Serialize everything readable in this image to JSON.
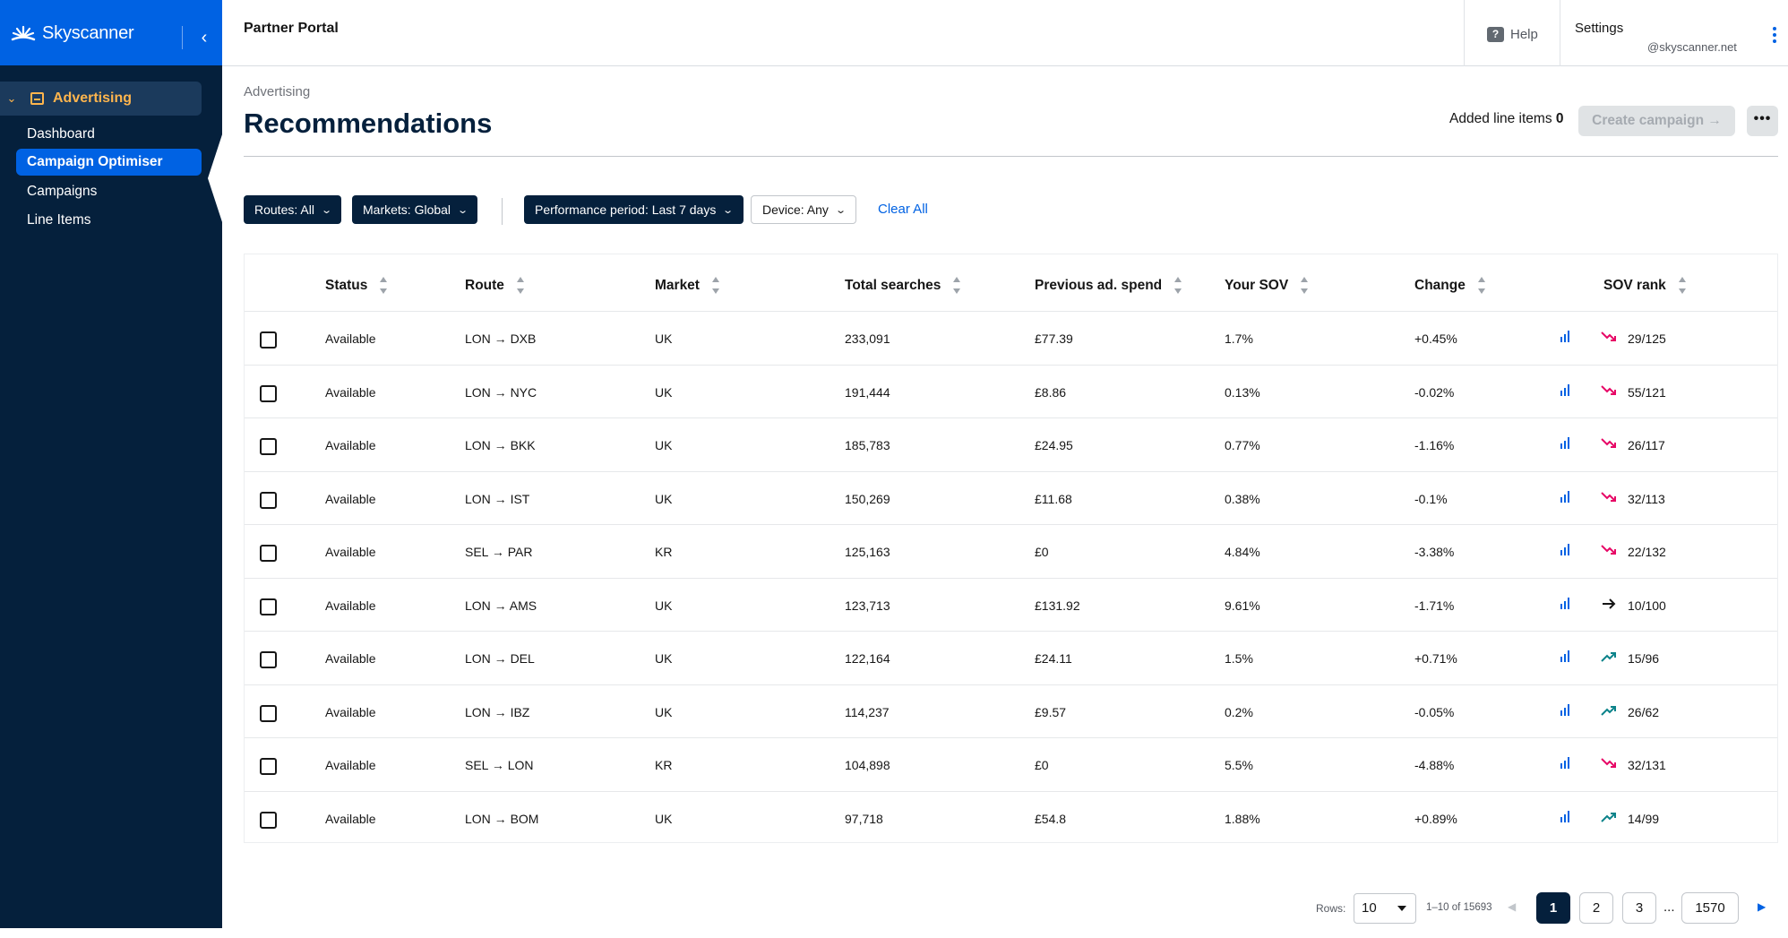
{
  "brand": {
    "name": "Skyscanner"
  },
  "sidebar": {
    "section": "Advertising",
    "items": [
      {
        "label": "Dashboard",
        "active": false
      },
      {
        "label": "Campaign Optimiser",
        "active": true
      },
      {
        "label": "Campaigns",
        "active": false
      },
      {
        "label": "Line Items",
        "active": false
      }
    ]
  },
  "topbar": {
    "title": "Partner Portal",
    "help_label": "Help",
    "settings_label": "Settings",
    "email": "@skyscanner.net"
  },
  "page": {
    "breadcrumb": "Advertising",
    "title": "Recommendations",
    "added_label": "Added line items",
    "added_count": "0",
    "create_label": "Create campaign →",
    "more_label": "•••"
  },
  "filters": {
    "routes": "Routes: All",
    "markets": "Markets: Global",
    "period": "Performance period: Last 7 days",
    "device": "Device: Any",
    "clear": "Clear All"
  },
  "table": {
    "columns": [
      "Status",
      "Route",
      "Market",
      "Total searches",
      "Previous ad. spend",
      "Your SOV",
      "Change",
      "SOV rank"
    ],
    "rows": [
      {
        "status": "Available",
        "route": "LON → DXB",
        "market": "UK",
        "searches": "233,091",
        "spend": "£77.39",
        "sov": "1.7%",
        "change": "+0.45%",
        "trend": "down",
        "rank": "29/125"
      },
      {
        "status": "Available",
        "route": "LON → NYC",
        "market": "UK",
        "searches": "191,444",
        "spend": "£8.86",
        "sov": "0.13%",
        "change": "-0.02%",
        "trend": "down",
        "rank": "55/121"
      },
      {
        "status": "Available",
        "route": "LON → BKK",
        "market": "UK",
        "searches": "185,783",
        "spend": "£24.95",
        "sov": "0.77%",
        "change": "-1.16%",
        "trend": "down",
        "rank": "26/117"
      },
      {
        "status": "Available",
        "route": "LON → IST",
        "market": "UK",
        "searches": "150,269",
        "spend": "£11.68",
        "sov": "0.38%",
        "change": "-0.1%",
        "trend": "down",
        "rank": "32/113"
      },
      {
        "status": "Available",
        "route": "SEL → PAR",
        "market": "KR",
        "searches": "125,163",
        "spend": "£0",
        "sov": "4.84%",
        "change": "-3.38%",
        "trend": "down",
        "rank": "22/132"
      },
      {
        "status": "Available",
        "route": "LON → AMS",
        "market": "UK",
        "searches": "123,713",
        "spend": "£131.92",
        "sov": "9.61%",
        "change": "-1.71%",
        "trend": "flat",
        "rank": "10/100"
      },
      {
        "status": "Available",
        "route": "LON → DEL",
        "market": "UK",
        "searches": "122,164",
        "spend": "£24.11",
        "sov": "1.5%",
        "change": "+0.71%",
        "trend": "up",
        "rank": "15/96"
      },
      {
        "status": "Available",
        "route": "LON → IBZ",
        "market": "UK",
        "searches": "114,237",
        "spend": "£9.57",
        "sov": "0.2%",
        "change": "-0.05%",
        "trend": "up",
        "rank": "26/62"
      },
      {
        "status": "Available",
        "route": "SEL → LON",
        "market": "KR",
        "searches": "104,898",
        "spend": "£0",
        "sov": "5.5%",
        "change": "-4.88%",
        "trend": "down",
        "rank": "32/131"
      },
      {
        "status": "Available",
        "route": "LON → BOM",
        "market": "UK",
        "searches": "97,718",
        "spend": "£54.8",
        "sov": "1.88%",
        "change": "+0.89%",
        "trend": "up",
        "rank": "14/99"
      }
    ]
  },
  "pagination": {
    "rows_label": "Rows:",
    "rows_value": "10",
    "range": "1–10 of 15693",
    "pages": [
      "1",
      "2",
      "3"
    ],
    "ellipsis": "...",
    "last_page": "1570"
  },
  "colors": {
    "brand_blue": "#0062e3",
    "sidebar_navy": "#05203c",
    "accent_orange": "#ffb54d",
    "trend_down": "#e70866",
    "trend_up": "#0c838a",
    "trend_flat": "#161616"
  }
}
